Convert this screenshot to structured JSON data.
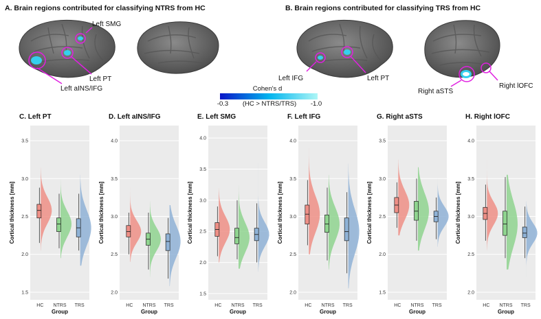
{
  "sections": [
    {
      "title": "A. Brain regions contributed for classifying NTRS from HC",
      "labels": [
        "Left SMG",
        "Left PT",
        "Left aINS/IFG"
      ]
    },
    {
      "title": "B. Brain regions contributed for classifying TRS from HC",
      "labels": [
        "Left IFG",
        "Left PT",
        "Right aSTS",
        "Right lOFC"
      ]
    }
  ],
  "colorbar": {
    "title": "Cohen's d",
    "subtitle": "(HC > NTRS/TRS)",
    "min_label": "-0.3",
    "max_label": "-1.0",
    "colors": [
      "#0a16c8",
      "#00b4ee",
      "#aef6f6"
    ]
  },
  "colors": {
    "HC": "#ee8f86",
    "NTRS": "#8fd48f",
    "TRS": "#8fb2d6",
    "panel_bg": "#ebebeb",
    "highlight": "#e020e0",
    "cortex": "#6b6b6b"
  },
  "axis_text": {
    "xlabel": "Group",
    "ylabel": "Cortical thickness [mm]"
  },
  "chart_data": [
    {
      "type": "violin",
      "title": "C. Left PT",
      "categories": [
        "HC",
        "NTRS",
        "TRS"
      ],
      "xlabel": "Group",
      "ylabel": "Cortical thickness [mm]",
      "ylim": [
        1.4,
        3.7
      ],
      "ticks": [
        1.5,
        2.0,
        2.5,
        3.0,
        3.5
      ],
      "series": [
        {
          "name": "HC",
          "median": 2.58,
          "q1": 2.48,
          "q3": 2.66,
          "min": 2.15,
          "max": 2.88,
          "vmin": 2.05,
          "vmax": 3.15
        },
        {
          "name": "NTRS",
          "median": 2.4,
          "q1": 2.3,
          "q3": 2.48,
          "min": 2.08,
          "max": 2.8,
          "vmin": 1.95,
          "vmax": 3.0
        },
        {
          "name": "TRS",
          "median": 2.35,
          "q1": 2.23,
          "q3": 2.47,
          "min": 2.05,
          "max": 2.8,
          "vmin": 1.85,
          "vmax": 3.05
        }
      ]
    },
    {
      "type": "violin",
      "title": "D. Left aINS/IFG",
      "categories": [
        "HC",
        "NTRS",
        "TRS"
      ],
      "xlabel": "Group",
      "ylabel": "Cortical thickness [mm]",
      "ylim": [
        1.9,
        4.2
      ],
      "ticks": [
        2.0,
        2.5,
        3.0,
        3.5,
        4.0
      ],
      "series": [
        {
          "name": "HC",
          "median": 2.8,
          "q1": 2.73,
          "q3": 2.88,
          "min": 2.5,
          "max": 3.05,
          "vmin": 2.4,
          "vmax": 3.38
        },
        {
          "name": "NTRS",
          "median": 2.7,
          "q1": 2.62,
          "q3": 2.78,
          "min": 2.3,
          "max": 3.05,
          "vmin": 2.2,
          "vmax": 3.2
        },
        {
          "name": "TRS",
          "median": 2.67,
          "q1": 2.55,
          "q3": 2.77,
          "min": 2.18,
          "max": 2.98,
          "vmin": 2.08,
          "vmax": 3.15
        }
      ]
    },
    {
      "type": "violin",
      "title": "E. Left SMG",
      "categories": [
        "HC",
        "NTRS",
        "TRS"
      ],
      "xlabel": "Group",
      "ylabel": "Cortical thickness [mm]",
      "ylim": [
        1.4,
        4.2
      ],
      "ticks": [
        1.5,
        2.0,
        2.5,
        3.0,
        3.5,
        4.0
      ],
      "series": [
        {
          "name": "HC",
          "median": 2.53,
          "q1": 2.42,
          "q3": 2.64,
          "min": 2.1,
          "max": 2.9,
          "vmin": 2.0,
          "vmax": 3.2
        },
        {
          "name": "NTRS",
          "median": 2.4,
          "q1": 2.3,
          "q3": 2.55,
          "min": 2.05,
          "max": 3.0,
          "vmin": 1.9,
          "vmax": 3.35
        },
        {
          "name": "TRS",
          "median": 2.45,
          "q1": 2.35,
          "q3": 2.55,
          "min": 2.0,
          "max": 2.95,
          "vmin": 1.85,
          "vmax": 3.6
        }
      ]
    },
    {
      "type": "violin",
      "title": "F. Left IFG",
      "categories": [
        "HC",
        "NTRS",
        "TRS"
      ],
      "xlabel": "Group",
      "ylabel": "Cortical thickness [mm]",
      "ylim": [
        1.9,
        4.2
      ],
      "ticks": [
        2.0,
        2.5,
        3.0,
        3.5,
        4.0
      ],
      "series": [
        {
          "name": "HC",
          "median": 3.03,
          "q1": 2.9,
          "q3": 3.15,
          "min": 2.62,
          "max": 3.48,
          "vmin": 2.5,
          "vmax": 3.9
        },
        {
          "name": "NTRS",
          "median": 2.9,
          "q1": 2.79,
          "q3": 3.02,
          "min": 2.42,
          "max": 3.38,
          "vmin": 2.3,
          "vmax": 3.55
        },
        {
          "name": "TRS",
          "median": 2.8,
          "q1": 2.68,
          "q3": 2.98,
          "min": 2.25,
          "max": 3.32,
          "vmin": 2.05,
          "vmax": 3.7
        }
      ]
    },
    {
      "type": "violin",
      "title": "G. Right aSTS",
      "categories": [
        "HC",
        "NTRS",
        "TRS"
      ],
      "xlabel": "Group",
      "ylabel": "Cortical thickness [mm]",
      "ylim": [
        1.4,
        3.7
      ],
      "ticks": [
        1.5,
        2.0,
        2.5,
        3.0,
        3.5
      ],
      "series": [
        {
          "name": "HC",
          "median": 2.65,
          "q1": 2.55,
          "q3": 2.75,
          "min": 2.35,
          "max": 2.95,
          "vmin": 2.25,
          "vmax": 3.25
        },
        {
          "name": "NTRS",
          "median": 2.57,
          "q1": 2.45,
          "q3": 2.7,
          "min": 2.18,
          "max": 3.0,
          "vmin": 2.05,
          "vmax": 3.15
        },
        {
          "name": "TRS",
          "median": 2.5,
          "q1": 2.43,
          "q3": 2.57,
          "min": 2.2,
          "max": 2.75,
          "vmin": 2.1,
          "vmax": 3.0
        }
      ]
    },
    {
      "type": "violin",
      "title": "H. Right lOFC",
      "categories": [
        "HC",
        "NTRS",
        "TRS"
      ],
      "xlabel": "Group",
      "ylabel": "Cortical thickness [mm]",
      "ylim": [
        1.9,
        4.2
      ],
      "ticks": [
        2.0,
        2.5,
        3.0,
        3.5,
        4.0
      ],
      "series": [
        {
          "name": "HC",
          "median": 3.04,
          "q1": 2.96,
          "q3": 3.12,
          "min": 2.68,
          "max": 3.42,
          "vmin": 2.55,
          "vmax": 3.75
        },
        {
          "name": "NTRS",
          "median": 2.9,
          "q1": 2.75,
          "q3": 3.07,
          "min": 2.45,
          "max": 3.52,
          "vmin": 2.3,
          "vmax": 3.55
        },
        {
          "name": "TRS",
          "median": 2.78,
          "q1": 2.72,
          "q3": 2.86,
          "min": 2.45,
          "max": 3.13,
          "vmin": 2.2,
          "vmax": 3.2
        }
      ]
    }
  ]
}
